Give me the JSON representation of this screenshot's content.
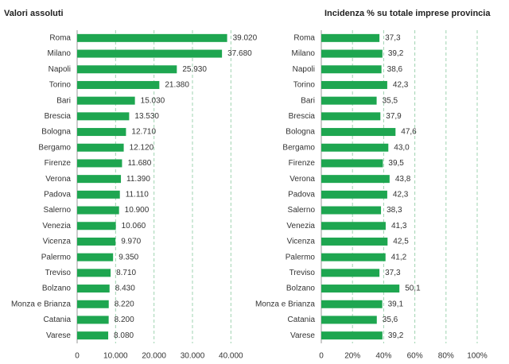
{
  "chart_data": [
    {
      "type": "bar",
      "orientation": "horizontal",
      "title": "Valori assoluti",
      "categories": [
        "Roma",
        "Milano",
        "Napoli",
        "Torino",
        "Bari",
        "Brescia",
        "Bologna",
        "Bergamo",
        "Firenze",
        "Verona",
        "Padova",
        "Salerno",
        "Venezia",
        "Vicenza",
        "Palermo",
        "Treviso",
        "Bolzano",
        "Monza e Brianza",
        "Catania",
        "Varese"
      ],
      "values": [
        39020,
        37680,
        25930,
        21380,
        15030,
        13530,
        12710,
        12120,
        11680,
        11390,
        11110,
        10900,
        10060,
        9970,
        9350,
        8710,
        8430,
        8220,
        8200,
        8080
      ],
      "value_labels": [
        "39.020",
        "37.680",
        "25.930",
        "21.380",
        "15.030",
        "13.530",
        "12.710",
        "12.120",
        "11.680",
        "11.390",
        "11.110",
        "10.900",
        "10.060",
        "9.970",
        "9.350",
        "8.710",
        "8.430",
        "8.220",
        "8.200",
        "8.080"
      ],
      "color": "#1ea650",
      "xlim": [
        0,
        42000
      ],
      "xticks": [
        0,
        {
          "value": 10000,
          "label": "10.000"
        },
        {
          "value": 20000,
          "label": "20.000"
        },
        {
          "value": 30000,
          "label": "30.000"
        },
        {
          "value": 40000,
          "label": "40.000"
        }
      ],
      "grid": true
    },
    {
      "type": "bar",
      "orientation": "horizontal",
      "title": "Incidenza % su totale imprese provincia",
      "categories": [
        "Roma",
        "Milano",
        "Napoli",
        "Torino",
        "Bari",
        "Brescia",
        "Bologna",
        "Bergamo",
        "Firenze",
        "Verona",
        "Padova",
        "Salerno",
        "Venezia",
        "Vicenza",
        "Palermo",
        "Treviso",
        "Bolzano",
        "Monza e Brianza",
        "Catania",
        "Varese"
      ],
      "values": [
        37.3,
        39.2,
        38.6,
        42.3,
        35.5,
        37.9,
        47.6,
        43.0,
        39.5,
        43.8,
        42.3,
        38.3,
        41.3,
        42.5,
        41.2,
        37.3,
        50.1,
        39.1,
        35.6,
        39.2
      ],
      "value_labels": [
        "37,3",
        "39,2",
        "38,6",
        "42,3",
        "35,5",
        "37,9",
        "47,6",
        "43,0",
        "39,5",
        "43,8",
        "42,3",
        "38,3",
        "41,3",
        "42,5",
        "41,2",
        "37,3",
        "50,1",
        "39,1",
        "35,6",
        "39,2"
      ],
      "color": "#1ea650",
      "xlim": [
        0,
        100
      ],
      "xticks": [
        0,
        {
          "value": 20,
          "label": "20%"
        },
        {
          "value": 40,
          "label": "40%"
        },
        {
          "value": 60,
          "label": "60%"
        },
        {
          "value": 80,
          "label": "80%"
        },
        {
          "value": 100,
          "label": "100%"
        }
      ],
      "grid": true
    }
  ]
}
